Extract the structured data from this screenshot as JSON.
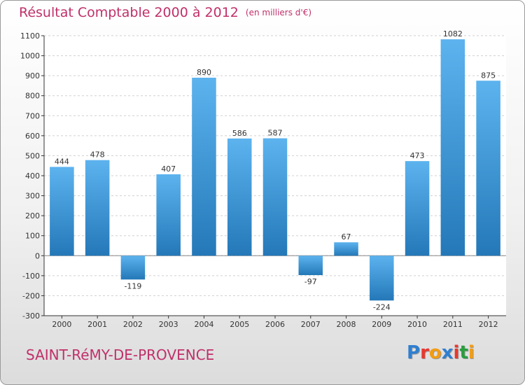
{
  "title": "Résultat Comptable 2000 à 2012",
  "subtitle": "(en milliers d'€)",
  "town": "SAINT-RéMY-DE-PROVENCE",
  "brand": {
    "letters": [
      "P",
      "r",
      "o",
      "x",
      "i",
      "t",
      "i"
    ],
    "colors": [
      "#2f7fd0",
      "#e8372f",
      "#f39c12",
      "#2f7fd0",
      "#e8372f",
      "#2a9d3e",
      "#f39c12"
    ]
  },
  "colors": {
    "accent": "#c0306a",
    "bar_top": "#5cb3ee",
    "bar_bottom": "#2478b8",
    "grid": "#d0d0d0",
    "axis": "#333333"
  },
  "chart_data": {
    "type": "bar",
    "title": "Résultat Comptable 2000 à 2012",
    "subtitle": "(en milliers d'€)",
    "xlabel": "",
    "ylabel": "",
    "categories": [
      "2000",
      "2001",
      "2002",
      "2003",
      "2004",
      "2005",
      "2006",
      "2007",
      "2008",
      "2009",
      "2010",
      "2011",
      "2012"
    ],
    "values": [
      444,
      478,
      -119,
      407,
      890,
      586,
      587,
      -97,
      67,
      -224,
      473,
      1082,
      875
    ],
    "ylim": [
      -300,
      1100
    ],
    "yticks": [
      -300,
      -200,
      -100,
      0,
      100,
      200,
      300,
      400,
      500,
      600,
      700,
      800,
      900,
      1000,
      1100
    ],
    "grid": true
  }
}
